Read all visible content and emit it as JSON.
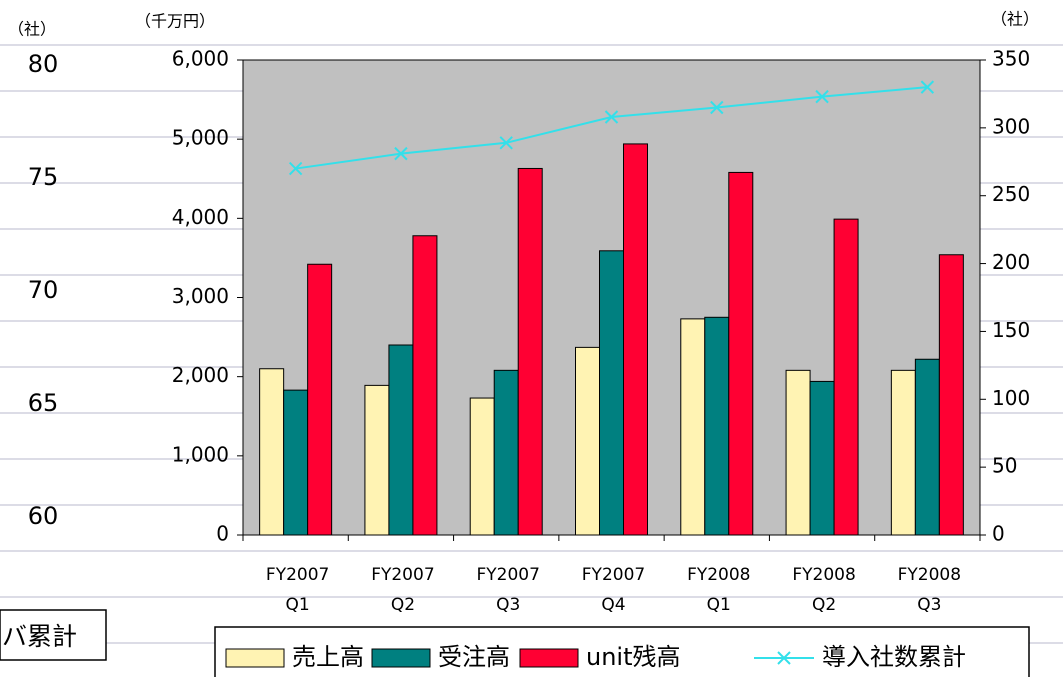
{
  "chart_data": {
    "type": "bar_line",
    "y_label": "（千万円）",
    "y2_label": "（社）",
    "categories": [
      [
        "FY2007",
        "Q1"
      ],
      [
        "FY2007",
        "Q2"
      ],
      [
        "FY2007",
        "Q3"
      ],
      [
        "FY2007",
        "Q4"
      ],
      [
        "FY2008",
        "Q1"
      ],
      [
        "FY2008",
        "Q2"
      ],
      [
        "FY2008",
        "Q3"
      ]
    ],
    "ylim": [
      0,
      6000
    ],
    "yticks": [
      0,
      {
        "value": 1000,
        "label": "1,000"
      },
      {
        "value": 2000,
        "label": "2,000"
      },
      {
        "value": 3000,
        "label": "3,000"
      },
      {
        "value": 4000,
        "label": "4,000"
      },
      {
        "value": 5000,
        "label": "5,000"
      },
      {
        "value": 6000,
        "label": "6,000"
      }
    ],
    "y2lim": [
      0,
      350
    ],
    "y2ticks": [
      0,
      50,
      100,
      150,
      200,
      250,
      300,
      350
    ],
    "series": [
      {
        "name": "売上高",
        "color": "#fff3b3",
        "type": "bar",
        "values": [
          2100,
          1890,
          1730,
          2370,
          2730,
          2080,
          2080
        ]
      },
      {
        "name": "受注高",
        "color": "#008080",
        "type": "bar",
        "values": [
          1830,
          2400,
          2080,
          3590,
          2750,
          1940,
          2220
        ]
      },
      {
        "name": "unit残高",
        "color": "#ff0033",
        "type": "bar",
        "values": [
          3420,
          3780,
          4630,
          4940,
          4580,
          3990,
          3540
        ]
      },
      {
        "name": "導入社数累計",
        "color": "#33e0ea",
        "type": "line",
        "axis": "y2",
        "values": [
          270,
          281,
          289,
          308,
          315,
          323,
          330
        ]
      }
    ],
    "plot_background": "#c0c0c0"
  },
  "stray_axis": {
    "label": "（社）",
    "lim": [
      60,
      80
    ],
    "ticks": [
      80,
      75,
      70,
      65,
      60
    ]
  },
  "stray_legend": "バ累計"
}
